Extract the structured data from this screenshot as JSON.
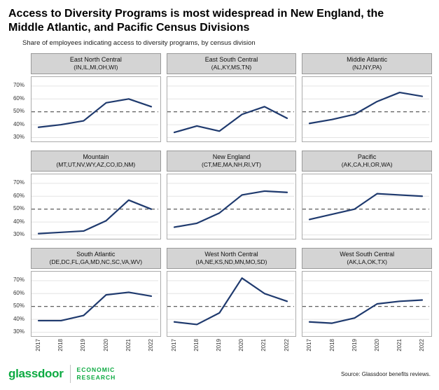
{
  "title": "Access to Diversity Programs is most widespread in New England, the Middle Atlantic, and Pacific Census Divisions",
  "subtitle": "Share of employees indicating access to diversity programs, by census division",
  "footer": {
    "brand": "glassdoor",
    "dept_line1": "ECONOMIC",
    "dept_line2": "RESEARCH",
    "source": "Source: Glassdoor benefits reviews."
  },
  "colors": {
    "line": "#1f3a6e",
    "brand_green": "#0caa41",
    "panel_header_bg": "#d4d4d4",
    "grid": "#e4e4e4",
    "dashed": "#4a4a4a"
  },
  "chart_data": {
    "type": "line",
    "x": [
      "2017",
      "2018",
      "2019",
      "2020",
      "2021",
      "2022"
    ],
    "y_tick_labels": [
      "30%",
      "40%",
      "50%",
      "60%",
      "70%"
    ],
    "ylim": [
      27,
      77
    ],
    "reference_line": 50,
    "grid": true,
    "legend_position": "none",
    "panels": [
      {
        "title": "East North Central",
        "states": "(IN,IL,MI,OH,WI)",
        "values": [
          38,
          40,
          43,
          57,
          60,
          54
        ]
      },
      {
        "title": "East South Central",
        "states": "(AL,KY,MS,TN)",
        "values": [
          34,
          39,
          35,
          48,
          54,
          45
        ]
      },
      {
        "title": "Middle Atlantic",
        "states": "(NJ,NY,PA)",
        "values": [
          41,
          44,
          48,
          58,
          65,
          62
        ]
      },
      {
        "title": "Mountain",
        "states": "(MT,UT,NV,WY,AZ,CO,ID,NM)",
        "values": [
          31,
          32,
          33,
          41,
          57,
          50
        ]
      },
      {
        "title": "New England",
        "states": "(CT,ME,MA,NH,RI,VT)",
        "values": [
          36,
          39,
          47,
          61,
          64,
          63
        ]
      },
      {
        "title": "Pacific",
        "states": "(AK,CA,HI,OR,WA)",
        "values": [
          42,
          46,
          50,
          62,
          61,
          60
        ]
      },
      {
        "title": "South Atlantic",
        "states": "(DE,DC,FL,GA,MD,NC,SC,VA,WV)",
        "values": [
          39,
          39,
          43,
          59,
          61,
          58
        ]
      },
      {
        "title": "West North Central",
        "states": "(IA,NE,KS,ND,MN,MO,SD)",
        "values": [
          38,
          36,
          45,
          72,
          60,
          54
        ]
      },
      {
        "title": "West South Central",
        "states": "(AK,LA,OK,TX)",
        "values": [
          38,
          37,
          41,
          52,
          54,
          55
        ]
      }
    ]
  }
}
